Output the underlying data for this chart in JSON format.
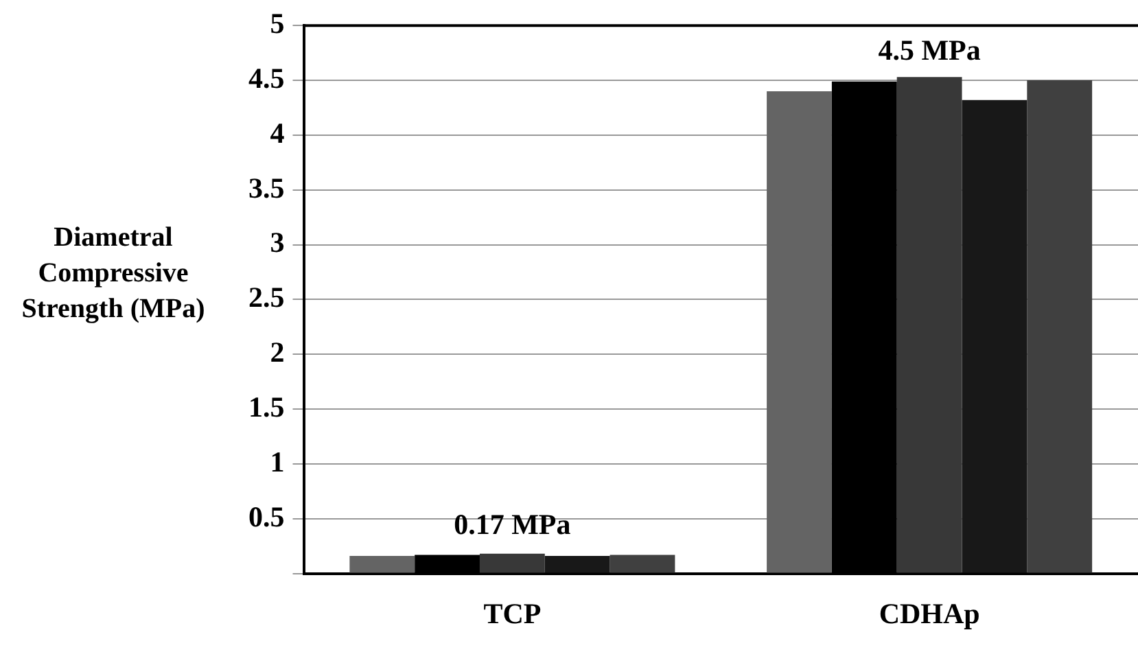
{
  "chart_data": {
    "type": "bar",
    "ylabel": "Diametral Compressive Strength (MPa)",
    "categories": [
      "TCP",
      "CDHAp"
    ],
    "series": [
      {
        "color": "#646464",
        "values": [
          0.16,
          4.4
        ]
      },
      {
        "color": "#000000",
        "values": [
          0.17,
          4.49
        ]
      },
      {
        "color": "#383838",
        "values": [
          0.18,
          4.53
        ]
      },
      {
        "color": "#181818",
        "values": [
          0.16,
          4.32
        ]
      },
      {
        "color": "#404040",
        "values": [
          0.17,
          4.5
        ]
      }
    ],
    "ylim": [
      0,
      5
    ],
    "yticks": [
      {
        "value": 0,
        "label": null
      },
      0.5,
      1,
      1.5,
      2,
      2.5,
      3,
      3.5,
      4,
      4.5,
      5
    ],
    "grid": "y",
    "legend": false,
    "annotations": [
      {
        "text": "0.17 MPa",
        "x": "TCP",
        "y": 0.17
      },
      {
        "text": "4.5 MPa",
        "x": "CDHAp",
        "y": 4.5
      }
    ]
  }
}
